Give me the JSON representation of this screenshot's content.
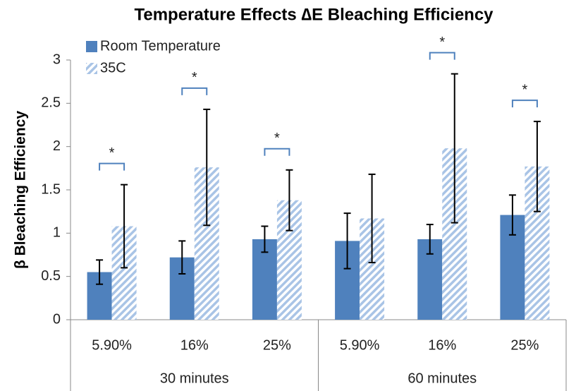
{
  "chart_data": {
    "type": "bar",
    "title": "Temperature Effects ∆E Bleaching Efficiency",
    "y_label": "β Bleaching Efficiency",
    "categories": [
      "5.90%",
      "16%",
      "25%",
      "5.90%",
      "16%",
      "25%"
    ],
    "groups": [
      "30 minutes",
      "60 minutes"
    ],
    "series": [
      {
        "name": "Room Temperature",
        "color": "#4f81bd",
        "pattern": "solid",
        "values": [
          0.55,
          0.72,
          0.93,
          0.91,
          0.93,
          1.21
        ],
        "errors": [
          0.14,
          0.19,
          0.15,
          0.32,
          0.17,
          0.23
        ]
      },
      {
        "name": "35C",
        "color": "#a9c4e6",
        "pattern": "hatch",
        "values": [
          1.08,
          1.76,
          1.38,
          1.17,
          1.98,
          1.77
        ],
        "errors": [
          0.48,
          0.67,
          0.35,
          0.51,
          0.86,
          0.52
        ]
      }
    ],
    "significance": [
      "*",
      "*",
      "*",
      null,
      "*",
      "*"
    ],
    "ylim": [
      0,
      3
    ],
    "yticks": [
      0,
      0.5,
      1,
      1.5,
      2,
      2.5,
      3
    ],
    "grid": false,
    "legend": "top-left"
  }
}
